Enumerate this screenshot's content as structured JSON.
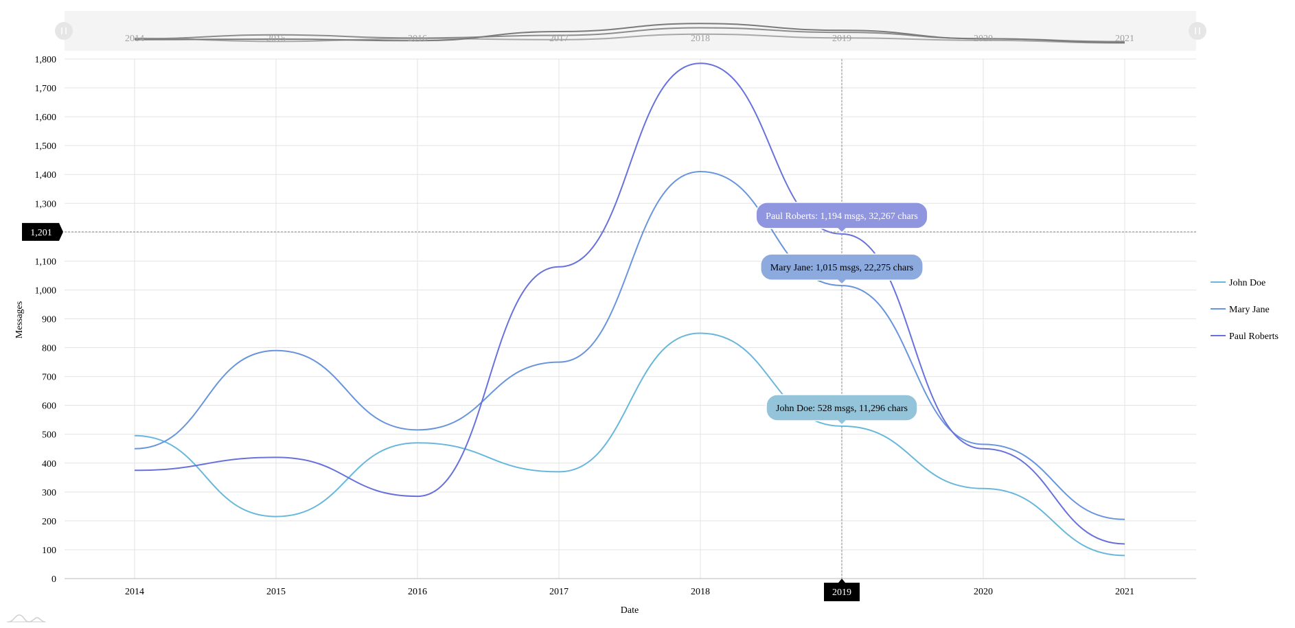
{
  "chart_data": {
    "type": "line",
    "x": [
      "2014",
      "2015",
      "2016",
      "2017",
      "2018",
      "2019",
      "2020",
      "2021"
    ],
    "xlabel": "Date",
    "ylabel": "Messages",
    "ylim": [
      0,
      1800
    ],
    "y_ticks": [
      "0",
      "100",
      "200",
      "300",
      "400",
      "500",
      "600",
      "700",
      "800",
      "900",
      "1,000",
      "1,100",
      "1,200",
      "1,300",
      "1,400",
      "1,500",
      "1,600",
      "1,700",
      "1,800"
    ],
    "y_tick_values": [
      0,
      100,
      200,
      300,
      400,
      500,
      600,
      700,
      800,
      900,
      1000,
      1100,
      1200,
      1300,
      1400,
      1500,
      1600,
      1700,
      1800
    ],
    "grid": true,
    "legend_position": "right",
    "curve": "smooth",
    "series": [
      {
        "name": "John Doe",
        "color": "#67b7dc",
        "values": [
          495,
          215,
          470,
          370,
          850,
          528,
          312,
          80
        ]
      },
      {
        "name": "Mary Jane",
        "color": "#6794dc",
        "values": [
          450,
          790,
          515,
          750,
          1410,
          1015,
          465,
          205
        ]
      },
      {
        "name": "Paul Roberts",
        "color": "#6771dc",
        "values": [
          375,
          420,
          285,
          1080,
          1785,
          1194,
          450,
          120
        ]
      }
    ],
    "cursor": {
      "x_label": "2019",
      "y_label": "1,201",
      "y_value": 1201
    },
    "tooltips": [
      {
        "series": "Paul Roberts",
        "text": "Paul Roberts: 1,194 msgs, 32,267 chars",
        "bg": "#8f96df",
        "fg": "#ffffff"
      },
      {
        "series": "Mary Jane",
        "text": "Mary Jane: 1,015 msgs, 22,275 chars",
        "bg": "#8daadf",
        "fg": "#000000"
      },
      {
        "series": "John Doe",
        "text": "John Doe: 528 msgs, 11,296 chars",
        "bg": "#93c4da",
        "fg": "#000000"
      }
    ],
    "scrollbar": {
      "labels": [
        "2014",
        "2015",
        "2016",
        "2017",
        "2018",
        "2019",
        "2020",
        "2021"
      ]
    }
  }
}
